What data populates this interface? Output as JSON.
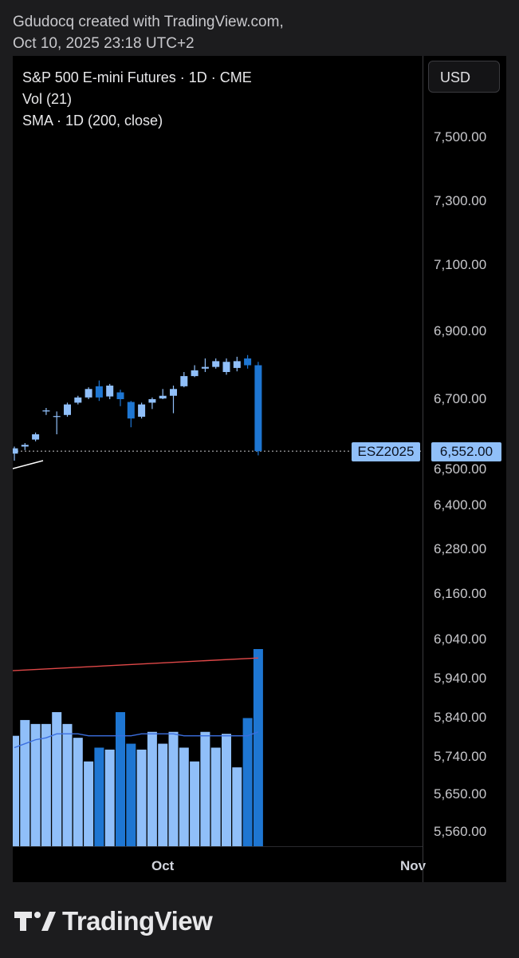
{
  "caption": {
    "line1": "Gdudocq created with TradingView.com,",
    "line2": "Oct 10, 2025 23:18 UTC+2"
  },
  "legend": {
    "symbol": "S&P 500 E-mini Futures · 1D · CME",
    "volume": "Vol (21)",
    "sma": "SMA · 1D (200, close)"
  },
  "currency": "USD",
  "last_price": {
    "symbol": "ESZ2025",
    "value": "6,552.00"
  },
  "time_axis": {
    "labels": [
      "Oct",
      "Nov"
    ]
  },
  "branding": {
    "name": "TradingView"
  },
  "colors": {
    "up": "#90bff9",
    "down": "#1e76d2",
    "sma": "#e04848",
    "volume_ma": "#3b6fe0",
    "background": "#000000"
  },
  "chart_data": {
    "type": "candlestick",
    "interval": "1D",
    "price_axis_ticks": [
      "7,500.00",
      "7,300.00",
      "7,100.00",
      "6,900.00",
      "6,700.00",
      "6,500.00",
      "6,400.00",
      "6,280.00",
      "6,160.00",
      "6,040.00",
      "5,940.00",
      "5,840.00",
      "5,740.00",
      "5,650.00",
      "5,560.00"
    ],
    "candles": [
      {
        "o": 6545,
        "h": 6565,
        "l": 6525,
        "c": 6560
      },
      {
        "o": 6565,
        "h": 6575,
        "l": 6555,
        "c": 6570
      },
      {
        "o": 6585,
        "h": 6605,
        "l": 6580,
        "c": 6600
      },
      {
        "o": 6665,
        "h": 6675,
        "l": 6655,
        "c": 6668
      },
      {
        "o": 6650,
        "h": 6665,
        "l": 6600,
        "c": 6652
      },
      {
        "o": 6655,
        "h": 6690,
        "l": 6650,
        "c": 6685
      },
      {
        "o": 6690,
        "h": 6710,
        "l": 6685,
        "c": 6705
      },
      {
        "o": 6705,
        "h": 6735,
        "l": 6700,
        "c": 6730
      },
      {
        "o": 6738,
        "h": 6755,
        "l": 6695,
        "c": 6705
      },
      {
        "o": 6708,
        "h": 6745,
        "l": 6700,
        "c": 6740
      },
      {
        "o": 6720,
        "h": 6728,
        "l": 6680,
        "c": 6700
      },
      {
        "o": 6692,
        "h": 6695,
        "l": 6620,
        "c": 6645
      },
      {
        "o": 6650,
        "h": 6690,
        "l": 6645,
        "c": 6685
      },
      {
        "o": 6690,
        "h": 6705,
        "l": 6672,
        "c": 6700
      },
      {
        "o": 6702,
        "h": 6730,
        "l": 6700,
        "c": 6710
      },
      {
        "o": 6710,
        "h": 6740,
        "l": 6660,
        "c": 6730
      },
      {
        "o": 6738,
        "h": 6780,
        "l": 6735,
        "c": 6768
      },
      {
        "o": 6768,
        "h": 6800,
        "l": 6765,
        "c": 6785
      },
      {
        "o": 6790,
        "h": 6820,
        "l": 6780,
        "c": 6795
      },
      {
        "o": 6795,
        "h": 6820,
        "l": 6790,
        "c": 6812
      },
      {
        "o": 6780,
        "h": 6820,
        "l": 6772,
        "c": 6810
      },
      {
        "o": 6792,
        "h": 6825,
        "l": 6782,
        "c": 6812
      },
      {
        "o": 6820,
        "h": 6830,
        "l": 6790,
        "c": 6800
      },
      {
        "o": 6800,
        "h": 6810,
        "l": 6540,
        "c": 6552
      }
    ],
    "volume": [
      56,
      64,
      62,
      62,
      68,
      62,
      55,
      43,
      50,
      49,
      68,
      52,
      49,
      58,
      52,
      58,
      50,
      43,
      58,
      50,
      57,
      40,
      65,
      100
    ],
    "volume_ma": [
      50,
      52,
      54,
      55,
      57,
      57,
      57,
      56,
      56,
      56,
      56,
      56,
      57,
      57,
      57,
      57,
      56,
      56,
      56,
      56,
      56,
      56,
      56,
      58
    ],
    "sma_200": [
      5995,
      6005
    ]
  }
}
